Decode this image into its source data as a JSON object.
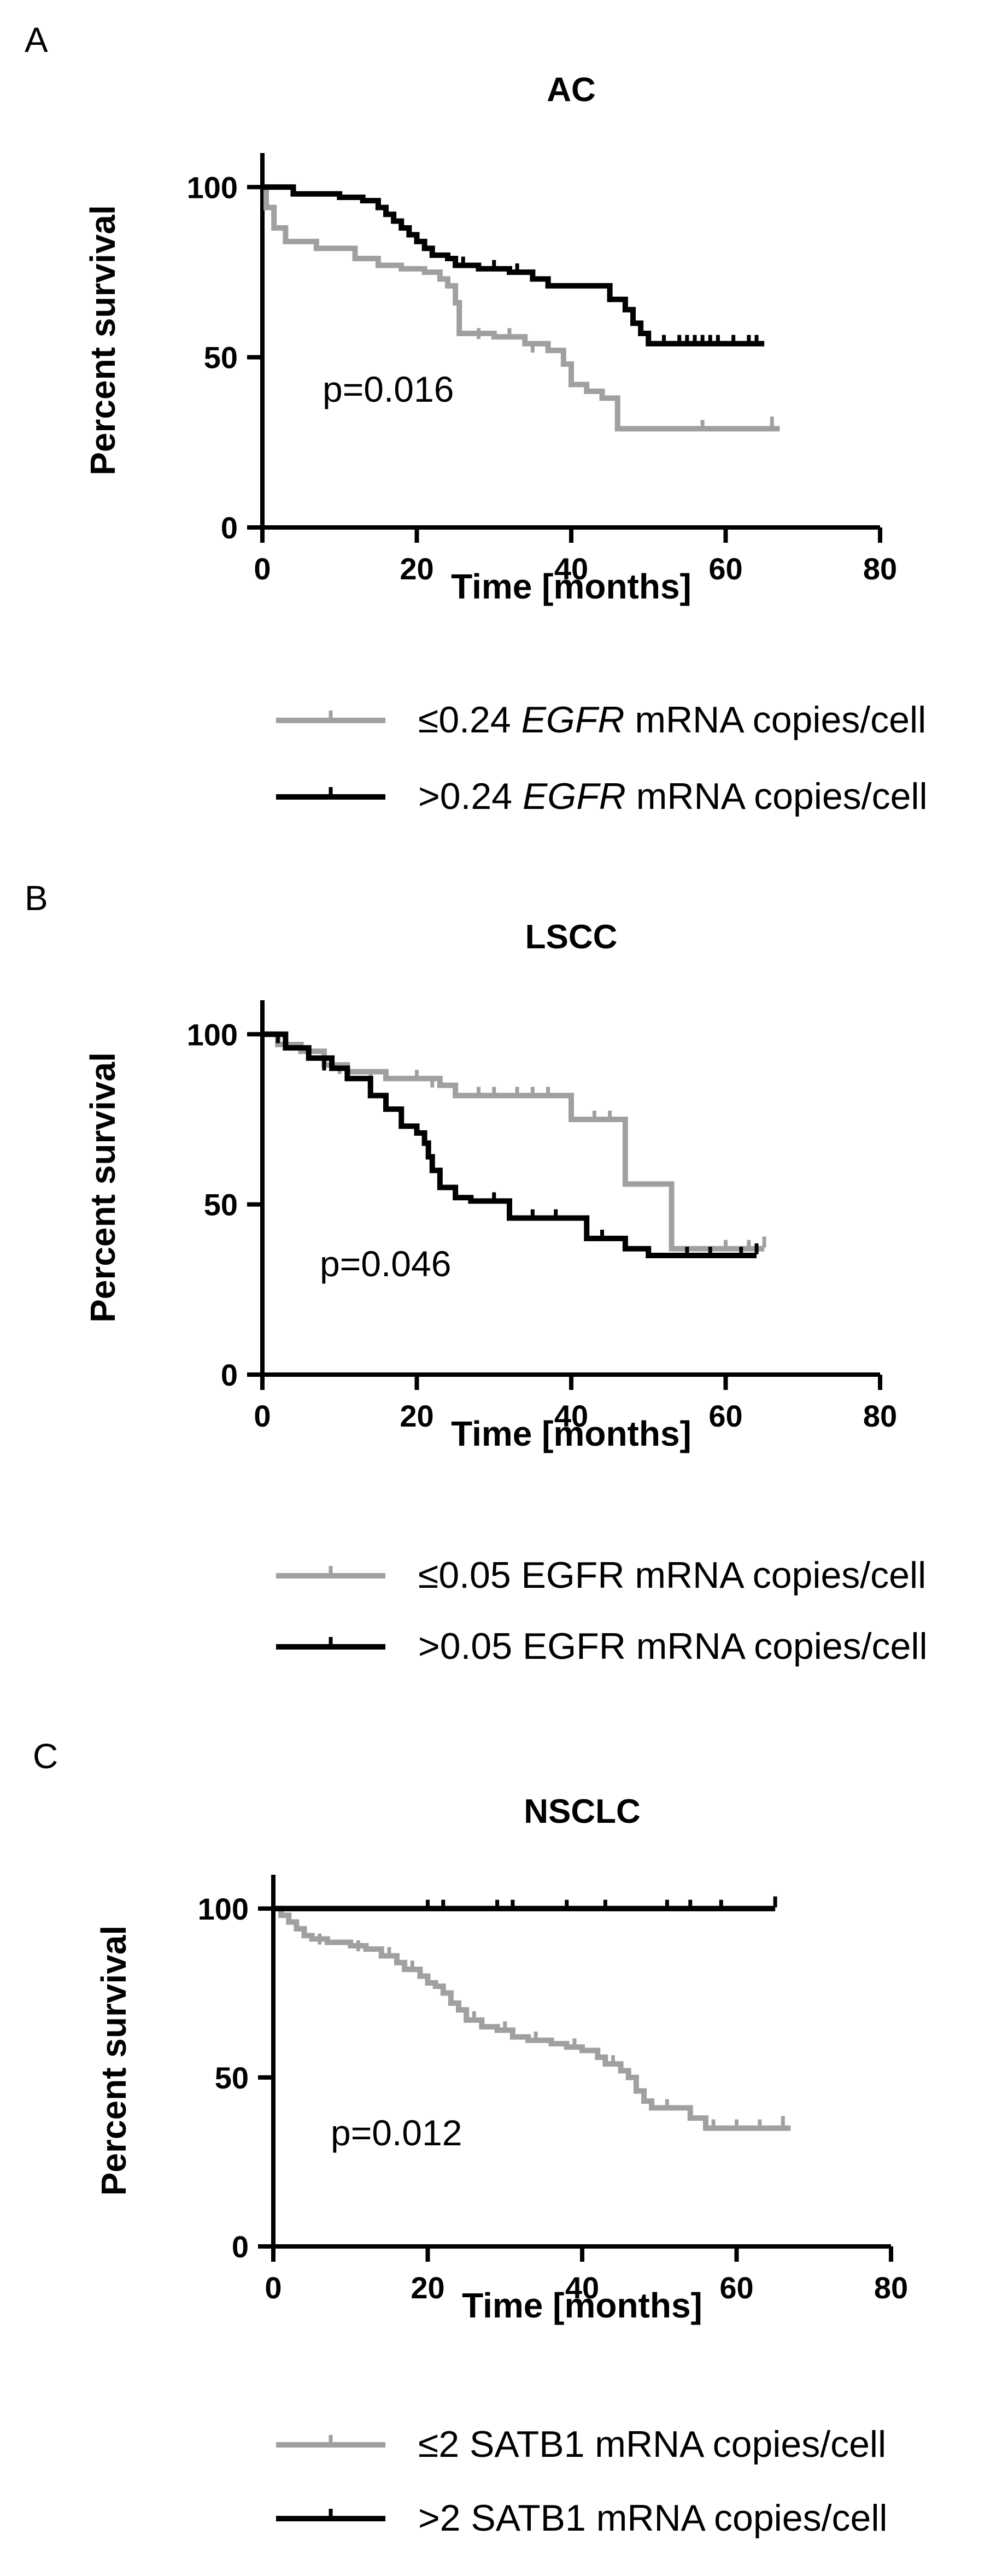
{
  "chart_data": [
    {
      "panel": "A",
      "type": "line",
      "title": "AC",
      "xlabel": "Time [months]",
      "ylabel": "Percent survival",
      "xlim": [
        0,
        80
      ],
      "ylim": [
        0,
        110
      ],
      "xticks": [
        0,
        20,
        40,
        60,
        80
      ],
      "yticks": [
        0,
        50,
        100
      ],
      "annotation": "p=0.016",
      "legend_position": "bottom",
      "grid": false,
      "series": [
        {
          "legend_pre": "≤0.24 ",
          "legend_em": "EGFR",
          "legend_post": " mRNA copies/cell",
          "color": "#a0a0a0",
          "steps": [
            [
              0,
              100
            ],
            [
              0.5,
              94
            ],
            [
              1.5,
              88
            ],
            [
              3,
              84
            ],
            [
              7,
              82
            ],
            [
              12,
              79
            ],
            [
              15,
              77
            ],
            [
              18,
              76
            ],
            [
              21,
              75
            ],
            [
              23,
              73
            ],
            [
              24,
              71
            ],
            [
              25,
              66
            ],
            [
              25.5,
              57
            ],
            [
              30,
              56
            ],
            [
              34,
              54
            ],
            [
              37,
              52
            ],
            [
              39,
              48
            ],
            [
              40,
              42
            ],
            [
              42,
              40
            ],
            [
              44,
              38
            ],
            [
              46,
              29
            ],
            [
              67,
              29
            ]
          ],
          "censors": [
            [
              23,
              73
            ],
            [
              28,
              56
            ],
            [
              32,
              56
            ],
            [
              35,
              52
            ],
            [
              57,
              29
            ],
            [
              66,
              30
            ]
          ]
        },
        {
          "legend_pre": ">0.24 ",
          "legend_em": "EGFR",
          "legend_post": " mRNA copies/cell",
          "color": "#000000",
          "steps": [
            [
              0,
              100
            ],
            [
              4,
              98
            ],
            [
              10,
              97
            ],
            [
              13,
              96
            ],
            [
              15,
              94
            ],
            [
              16,
              92
            ],
            [
              17,
              90
            ],
            [
              18,
              88
            ],
            [
              19,
              86
            ],
            [
              20,
              84
            ],
            [
              21,
              82
            ],
            [
              22,
              80
            ],
            [
              24,
              79
            ],
            [
              25,
              77
            ],
            [
              28,
              76
            ],
            [
              32,
              75
            ],
            [
              35,
              73
            ],
            [
              37,
              71
            ],
            [
              45,
              67
            ],
            [
              47,
              64
            ],
            [
              48,
              60
            ],
            [
              49,
              57
            ],
            [
              50,
              54
            ],
            [
              65,
              54
            ]
          ],
          "censors": [
            [
              22,
              80
            ],
            [
              26,
              77
            ],
            [
              30,
              76
            ],
            [
              33,
              75
            ],
            [
              52,
              54
            ],
            [
              54,
              54
            ],
            [
              55,
              54
            ],
            [
              56,
              54
            ],
            [
              57,
              54
            ],
            [
              58,
              54
            ],
            [
              59,
              54
            ],
            [
              61,
              54
            ],
            [
              63,
              54
            ],
            [
              64,
              54
            ]
          ]
        }
      ]
    },
    {
      "panel": "B",
      "type": "line",
      "title": "LSCC",
      "xlabel": "Time [months]",
      "ylabel": "Percent survival",
      "xlim": [
        0,
        80
      ],
      "ylim": [
        0,
        110
      ],
      "xticks": [
        0,
        20,
        40,
        60,
        80
      ],
      "yticks": [
        0,
        50,
        100
      ],
      "annotation": "p=0.046",
      "legend_position": "bottom",
      "grid": false,
      "series": [
        {
          "legend_pre": "≤0.05 EGFR mRNA copies/cell",
          "legend_em": "",
          "legend_post": "",
          "color": "#a0a0a0",
          "steps": [
            [
              0,
              100
            ],
            [
              2,
              97
            ],
            [
              5,
              95
            ],
            [
              8,
              91
            ],
            [
              11,
              89
            ],
            [
              16,
              87
            ],
            [
              23,
              85
            ],
            [
              25,
              82
            ],
            [
              40,
              75
            ],
            [
              47,
              56
            ],
            [
              50,
              56
            ],
            [
              53,
              37
            ],
            [
              65,
              37
            ]
          ],
          "censors": [
            [
              3,
              97
            ],
            [
              10,
              89
            ],
            [
              14,
              87
            ],
            [
              20,
              87
            ],
            [
              22,
              85
            ],
            [
              28,
              82
            ],
            [
              30,
              82
            ],
            [
              33,
              82
            ],
            [
              35,
              82
            ],
            [
              37,
              82
            ],
            [
              43,
              75
            ],
            [
              45,
              75
            ],
            [
              60,
              37
            ],
            [
              63,
              37
            ],
            [
              65,
              38
            ]
          ]
        },
        {
          "legend_pre": ">0.05 EGFR mRNA copies/cell",
          "legend_em": "",
          "legend_post": "",
          "color": "#000000",
          "steps": [
            [
              0,
              100
            ],
            [
              3,
              96
            ],
            [
              6,
              93
            ],
            [
              9,
              90
            ],
            [
              11,
              87
            ],
            [
              14,
              82
            ],
            [
              16,
              78
            ],
            [
              18,
              73
            ],
            [
              20,
              71
            ],
            [
              21,
              68
            ],
            [
              21.5,
              64
            ],
            [
              22,
              60
            ],
            [
              23,
              55
            ],
            [
              25,
              52
            ],
            [
              27,
              51
            ],
            [
              32,
              46
            ],
            [
              42,
              40
            ],
            [
              47,
              37
            ],
            [
              50,
              35
            ],
            [
              64,
              35
            ]
          ],
          "censors": [
            [
              2,
              98
            ],
            [
              8,
              90
            ],
            [
              16,
              78
            ],
            [
              25,
              52
            ],
            [
              30,
              51
            ],
            [
              35,
              46
            ],
            [
              38,
              46
            ],
            [
              44,
              40
            ],
            [
              55,
              35
            ],
            [
              58,
              35
            ],
            [
              62,
              35
            ],
            [
              64,
              36
            ]
          ]
        }
      ]
    },
    {
      "panel": "C",
      "type": "line",
      "title": "NSCLC",
      "xlabel": "Time [months]",
      "ylabel": "Percent survival",
      "xlim": [
        0,
        80
      ],
      "ylim": [
        0,
        110
      ],
      "xticks": [
        0,
        20,
        40,
        60,
        80
      ],
      "yticks": [
        0,
        50,
        100
      ],
      "annotation": "p=0.012",
      "legend_position": "bottom",
      "grid": false,
      "series": [
        {
          "legend_pre": "≤2 SATB1 mRNA copies/cell",
          "legend_em": "",
          "legend_post": "",
          "color": "#a0a0a0",
          "steps": [
            [
              0,
              100
            ],
            [
              1,
              98
            ],
            [
              2,
              96
            ],
            [
              3,
              94
            ],
            [
              4,
              92
            ],
            [
              5,
              91
            ],
            [
              7,
              90
            ],
            [
              10,
              89
            ],
            [
              12,
              88
            ],
            [
              14,
              86
            ],
            [
              16,
              84
            ],
            [
              17,
              82
            ],
            [
              19,
              80
            ],
            [
              20,
              78
            ],
            [
              21,
              77
            ],
            [
              22,
              75
            ],
            [
              23,
              72
            ],
            [
              24,
              70
            ],
            [
              25,
              67
            ],
            [
              27,
              65
            ],
            [
              29,
              64
            ],
            [
              31,
              62
            ],
            [
              33,
              61
            ],
            [
              36,
              60
            ],
            [
              38,
              59
            ],
            [
              40,
              58
            ],
            [
              42,
              56
            ],
            [
              43,
              54
            ],
            [
              45,
              52
            ],
            [
              46,
              50
            ],
            [
              47,
              46
            ],
            [
              48,
              43
            ],
            [
              49,
              41
            ],
            [
              52,
              41
            ],
            [
              54,
              38
            ],
            [
              56,
              35
            ],
            [
              67,
              35
            ]
          ],
          "censors": [
            [
              6,
              90
            ],
            [
              11,
              88
            ],
            [
              15,
              86
            ],
            [
              18,
              82
            ],
            [
              26,
              67
            ],
            [
              30,
              64
            ],
            [
              34,
              61
            ],
            [
              39,
              59
            ],
            [
              44,
              54
            ],
            [
              51,
              41
            ],
            [
              57,
              35
            ],
            [
              60,
              35
            ],
            [
              63,
              35
            ],
            [
              66,
              36
            ]
          ]
        },
        {
          "legend_pre": ">2 SATB1 mRNA copies/cell",
          "legend_em": "",
          "legend_post": "",
          "color": "#000000",
          "steps": [
            [
              0,
              100
            ],
            [
              65,
              100
            ]
          ],
          "censors": [
            [
              20,
              100
            ],
            [
              22,
              100
            ],
            [
              29,
              100
            ],
            [
              31,
              100
            ],
            [
              38,
              100
            ],
            [
              43,
              100
            ],
            [
              51,
              100
            ],
            [
              54,
              100
            ],
            [
              58,
              100
            ],
            [
              65,
              101
            ]
          ]
        }
      ]
    }
  ]
}
